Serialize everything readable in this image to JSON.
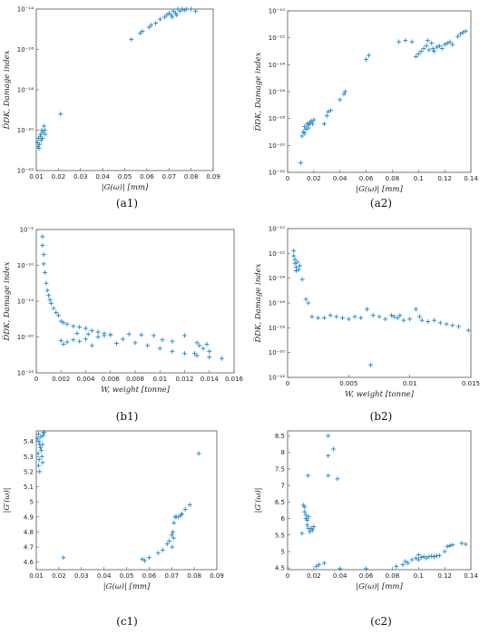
{
  "marker_color": "#1f86c8",
  "chart_data": [
    {
      "id": "a1",
      "type": "scatter",
      "yscale": "log",
      "caption": "(a1)",
      "xlabel": "|G(ω)|  [mm]",
      "ylabel": "D̅DK, Damage index",
      "xlim": [
        0.01,
        0.09
      ],
      "ylim_exp": [
        -22,
        -14
      ],
      "xticks": [
        "0.01",
        "0.02",
        "0.03",
        "0.04",
        "0.05",
        "0.06",
        "0.07",
        "0.08",
        "0.09"
      ],
      "yticks": [
        "10⁻²²",
        "10⁻²⁰",
        "10⁻¹⁸",
        "10⁻¹⁶",
        "10⁻¹⁴"
      ],
      "points": [
        [
          0.0105,
          -20.6
        ],
        [
          0.011,
          -20.4
        ],
        [
          0.0112,
          -20.9
        ],
        [
          0.0118,
          -20.3
        ],
        [
          0.0115,
          -20.7
        ],
        [
          0.012,
          -20.2
        ],
        [
          0.0125,
          -20.0
        ],
        [
          0.0128,
          -20.4
        ],
        [
          0.013,
          -20.1
        ],
        [
          0.0135,
          -19.8
        ],
        [
          0.0138,
          -20.0
        ],
        [
          0.014,
          -20.2
        ],
        [
          0.0108,
          -20.8
        ],
        [
          0.0122,
          -20.5
        ],
        [
          0.021,
          -19.2
        ],
        [
          0.053,
          -15.5
        ],
        [
          0.057,
          -15.2
        ],
        [
          0.058,
          -15.1
        ],
        [
          0.061,
          -14.9
        ],
        [
          0.062,
          -14.8
        ],
        [
          0.064,
          -14.7
        ],
        [
          0.066,
          -14.5
        ],
        [
          0.068,
          -14.4
        ],
        [
          0.069,
          -14.3
        ],
        [
          0.07,
          -14.2
        ],
        [
          0.071,
          -14.3
        ],
        [
          0.072,
          -14.1
        ],
        [
          0.073,
          -14.2
        ],
        [
          0.074,
          -14.0
        ],
        [
          0.075,
          -14.1
        ],
        [
          0.076,
          -14.0
        ],
        [
          0.077,
          -14.05
        ],
        [
          0.078,
          -14.0
        ],
        [
          0.079,
          -13.95
        ],
        [
          0.08,
          -14.0
        ],
        [
          0.082,
          -14.1
        ],
        [
          0.0715,
          -14.4
        ],
        [
          0.0735,
          -14.3
        ]
      ]
    },
    {
      "id": "a2",
      "type": "scatter",
      "yscale": "log",
      "caption": "(a2)",
      "xlabel": "|G(ω)|  [mm]",
      "ylabel": "D̅DK, Damage index",
      "xlim": [
        0,
        0.14
      ],
      "ylim_exp": [
        -22,
        -10
      ],
      "xticks": [
        "0",
        "0.02",
        "0.04",
        "0.06",
        "0.08",
        "0.1",
        "0.12",
        "0.14"
      ],
      "yticks": [
        "10⁻²²",
        "10⁻²⁰",
        "10⁻¹⁸",
        "10⁻¹⁶",
        "10⁻¹⁴",
        "10⁻¹²",
        "10⁻¹⁰"
      ],
      "points": [
        [
          0.01,
          -21.3
        ],
        [
          0.011,
          -19.3
        ],
        [
          0.012,
          -19.0
        ],
        [
          0.013,
          -18.6
        ],
        [
          0.014,
          -18.8
        ],
        [
          0.015,
          -18.4
        ],
        [
          0.016,
          -18.5
        ],
        [
          0.017,
          -18.3
        ],
        [
          0.018,
          -18.2
        ],
        [
          0.019,
          -18.4
        ],
        [
          0.02,
          -18.1
        ],
        [
          0.013,
          -19.1
        ],
        [
          0.016,
          -18.7
        ],
        [
          0.028,
          -18.4
        ],
        [
          0.03,
          -17.8
        ],
        [
          0.031,
          -17.5
        ],
        [
          0.033,
          -17.4
        ],
        [
          0.04,
          -16.6
        ],
        [
          0.043,
          -16.2
        ],
        [
          0.044,
          -16.0
        ],
        [
          0.06,
          -13.6
        ],
        [
          0.062,
          -13.3
        ],
        [
          0.085,
          -12.3
        ],
        [
          0.09,
          -12.2
        ],
        [
          0.095,
          -12.3
        ],
        [
          0.098,
          -13.4
        ],
        [
          0.1,
          -13.2
        ],
        [
          0.102,
          -13.0
        ],
        [
          0.104,
          -12.8
        ],
        [
          0.106,
          -12.6
        ],
        [
          0.108,
          -12.9
        ],
        [
          0.11,
          -12.4
        ],
        [
          0.112,
          -13.0
        ],
        [
          0.114,
          -12.7
        ],
        [
          0.116,
          -12.6
        ],
        [
          0.118,
          -12.8
        ],
        [
          0.12,
          -12.5
        ],
        [
          0.122,
          -12.4
        ],
        [
          0.124,
          -12.3
        ],
        [
          0.126,
          -12.5
        ],
        [
          0.13,
          -11.9
        ],
        [
          0.132,
          -11.7
        ],
        [
          0.134,
          -11.6
        ],
        [
          0.136,
          -11.5
        ],
        [
          0.111,
          -12.8
        ],
        [
          0.107,
          -12.2
        ]
      ]
    },
    {
      "id": "b1",
      "type": "scatter",
      "yscale": "log",
      "caption": "(b1)",
      "xlabel": "W, weight [tonne]",
      "ylabel": "D̅DK, Damage index",
      "xlim": [
        0,
        0.016
      ],
      "ylim_exp": [
        -25,
        -5
      ],
      "xticks": [
        "0",
        "0.002",
        "0.004",
        "0.006",
        "0.008",
        "0.01",
        "0.012",
        "0.014",
        "0.016"
      ],
      "yticks": [
        "10⁻²⁵",
        "10⁻²⁰",
        "10⁻¹⁵",
        "10⁻¹⁰",
        "10⁻⁵"
      ],
      "points": [
        [
          0.0005,
          -6.0
        ],
        [
          0.0005,
          -7.2
        ],
        [
          0.0006,
          -8.5
        ],
        [
          0.0006,
          -9.8
        ],
        [
          0.0007,
          -11.0
        ],
        [
          0.0008,
          -12.5
        ],
        [
          0.0009,
          -13.5
        ],
        [
          0.001,
          -14.2
        ],
        [
          0.0011,
          -14.8
        ],
        [
          0.0012,
          -15.3
        ],
        [
          0.0014,
          -16.0
        ],
        [
          0.0016,
          -16.6
        ],
        [
          0.0018,
          -17.0
        ],
        [
          0.002,
          -17.8
        ],
        [
          0.0022,
          -18.0
        ],
        [
          0.0025,
          -18.2
        ],
        [
          0.003,
          -18.5
        ],
        [
          0.0035,
          -18.6
        ],
        [
          0.004,
          -18.8
        ],
        [
          0.0045,
          -19.1
        ],
        [
          0.005,
          -19.3
        ],
        [
          0.0055,
          -19.5
        ],
        [
          0.006,
          -19.7
        ],
        [
          0.007,
          -20.3
        ],
        [
          0.008,
          -20.8
        ],
        [
          0.009,
          -21.2
        ],
        [
          0.01,
          -21.6
        ],
        [
          0.011,
          -22.0
        ],
        [
          0.012,
          -22.3
        ],
        [
          0.013,
          -22.6
        ],
        [
          0.014,
          -22.8
        ],
        [
          0.015,
          -23.0
        ],
        [
          0.002,
          -20.5
        ],
        [
          0.0022,
          -21.0
        ],
        [
          0.0025,
          -20.7
        ],
        [
          0.003,
          -20.4
        ],
        [
          0.0035,
          -20.6
        ],
        [
          0.004,
          -20.3
        ],
        [
          0.0045,
          -21.2
        ],
        [
          0.005,
          -20.0
        ],
        [
          0.0055,
          -19.8
        ],
        [
          0.006,
          -19.7
        ],
        [
          0.0065,
          -20.9
        ],
        [
          0.0075,
          -19.6
        ],
        [
          0.0085,
          -19.7
        ],
        [
          0.0095,
          -19.8
        ],
        [
          0.0102,
          -20.4
        ],
        [
          0.011,
          -20.6
        ],
        [
          0.012,
          -19.8
        ],
        [
          0.013,
          -20.8
        ],
        [
          0.0132,
          -21.2
        ],
        [
          0.0135,
          -21.6
        ],
        [
          0.014,
          -22.0
        ],
        [
          0.0138,
          -21.0
        ],
        [
          0.0128,
          -22.3
        ],
        [
          0.0033,
          -19.5
        ],
        [
          0.0042,
          -19.6
        ]
      ]
    },
    {
      "id": "b2",
      "type": "scatter",
      "yscale": "log",
      "caption": "(b2)",
      "xlabel": "W, weight [tonne]",
      "ylabel": "D̅DK, Damage index",
      "xlim": [
        0,
        0.015
      ],
      "ylim_exp": [
        -22,
        -10
      ],
      "xticks": [
        "0",
        "0.005",
        "0.01",
        "0.015"
      ],
      "yticks": [
        "10⁻²²",
        "10⁻²⁰",
        "10⁻¹⁸",
        "10⁻¹⁶",
        "10⁻¹⁴",
        "10⁻¹²",
        "10⁻¹⁰"
      ],
      "points": [
        [
          0.0005,
          -11.8
        ],
        [
          0.0005,
          -12.2
        ],
        [
          0.0006,
          -12.5
        ],
        [
          0.0006,
          -12.8
        ],
        [
          0.0007,
          -13.1
        ],
        [
          0.0007,
          -13.4
        ],
        [
          0.0008,
          -12.7
        ],
        [
          0.0009,
          -13.3
        ],
        [
          0.001,
          -13.0
        ],
        [
          0.0012,
          -14.1
        ],
        [
          0.0015,
          -15.7
        ],
        [
          0.0017,
          -16.0
        ],
        [
          0.002,
          -17.1
        ],
        [
          0.0025,
          -17.2
        ],
        [
          0.003,
          -17.2
        ],
        [
          0.0035,
          -17.0
        ],
        [
          0.004,
          -17.1
        ],
        [
          0.0045,
          -17.2
        ],
        [
          0.005,
          -17.3
        ],
        [
          0.0055,
          -17.1
        ],
        [
          0.006,
          -17.2
        ],
        [
          0.0065,
          -16.5
        ],
        [
          0.0068,
          -21.0
        ],
        [
          0.007,
          -17.0
        ],
        [
          0.0075,
          -17.1
        ],
        [
          0.008,
          -17.3
        ],
        [
          0.0085,
          -17.0
        ],
        [
          0.009,
          -17.2
        ],
        [
          0.0095,
          -17.4
        ],
        [
          0.01,
          -17.3
        ],
        [
          0.0105,
          -16.5
        ],
        [
          0.011,
          -17.4
        ],
        [
          0.0115,
          -17.5
        ],
        [
          0.012,
          -17.4
        ],
        [
          0.0125,
          -17.6
        ],
        [
          0.013,
          -17.7
        ],
        [
          0.0135,
          -17.8
        ],
        [
          0.014,
          -17.9
        ],
        [
          0.0148,
          -18.2
        ],
        [
          0.0087,
          -17.1
        ],
        [
          0.0092,
          -17.0
        ],
        [
          0.0108,
          -17.1
        ]
      ]
    },
    {
      "id": "c1",
      "type": "scatter",
      "yscale": "linear",
      "caption": "(c1)",
      "xlabel": "|G(ω)|  [mm]",
      "ylabel": "|G′(ω)|",
      "xlim": [
        0.01,
        0.09
      ],
      "ylim": [
        4.55,
        5.47
      ],
      "xticks": [
        "0.01",
        "0.02",
        "0.03",
        "0.04",
        "0.05",
        "0.06",
        "0.07",
        "0.08",
        "0.09"
      ],
      "yticks": [
        "4.6",
        "4.7",
        "4.8",
        "4.9",
        "5",
        "5.1",
        "5.2",
        "5.3",
        "5.4"
      ],
      "ytick_values": [
        4.6,
        4.7,
        4.8,
        4.9,
        5,
        5.1,
        5.2,
        5.3,
        5.4
      ],
      "points": [
        [
          0.0105,
          5.42
        ],
        [
          0.011,
          5.45
        ],
        [
          0.0112,
          5.4
        ],
        [
          0.0115,
          5.38
        ],
        [
          0.0118,
          5.36
        ],
        [
          0.012,
          5.43
        ],
        [
          0.0122,
          5.34
        ],
        [
          0.0125,
          5.3
        ],
        [
          0.0128,
          5.26
        ],
        [
          0.013,
          5.44
        ],
        [
          0.0132,
          5.46
        ],
        [
          0.0135,
          5.46
        ],
        [
          0.0115,
          5.2
        ],
        [
          0.011,
          5.24
        ],
        [
          0.0108,
          5.32
        ],
        [
          0.0113,
          5.28
        ],
        [
          0.0127,
          5.38
        ],
        [
          0.022,
          4.63
        ],
        [
          0.057,
          4.62
        ],
        [
          0.058,
          4.61
        ],
        [
          0.06,
          4.63
        ],
        [
          0.064,
          4.66
        ],
        [
          0.066,
          4.68
        ],
        [
          0.068,
          4.72
        ],
        [
          0.069,
          4.74
        ],
        [
          0.07,
          4.78
        ],
        [
          0.0705,
          4.8
        ],
        [
          0.071,
          4.86
        ],
        [
          0.0715,
          4.9
        ],
        [
          0.072,
          4.9
        ],
        [
          0.073,
          4.9
        ],
        [
          0.074,
          4.91
        ],
        [
          0.0745,
          4.92
        ],
        [
          0.076,
          4.95
        ],
        [
          0.078,
          4.98
        ],
        [
          0.082,
          5.32
        ],
        [
          0.0708,
          4.76
        ],
        [
          0.0702,
          4.7
        ]
      ]
    },
    {
      "id": "c2",
      "type": "scatter",
      "yscale": "linear",
      "caption": "(c2)",
      "xlabel": "|G(ω)|  [mm]",
      "ylabel": "|G′(ω)|",
      "xlim": [
        0,
        0.14
      ],
      "ylim": [
        4.45,
        8.65
      ],
      "xticks": [
        "0",
        "0.02",
        "0.04",
        "0.06",
        "0.08",
        "0.1",
        "0.12",
        "0.14"
      ],
      "yticks": [
        "4.5",
        "5",
        "5.5",
        "6",
        "6.5",
        "7",
        "7.5",
        "8",
        "8.5"
      ],
      "ytick_values": [
        4.5,
        5,
        5.5,
        6,
        6.5,
        7,
        7.5,
        8,
        8.5
      ],
      "points": [
        [
          0.011,
          5.55
        ],
        [
          0.012,
          6.4
        ],
        [
          0.013,
          6.2
        ],
        [
          0.014,
          6.0
        ],
        [
          0.015,
          5.8
        ],
        [
          0.016,
          5.7
        ],
        [
          0.017,
          5.6
        ],
        [
          0.018,
          5.7
        ],
        [
          0.013,
          6.35
        ],
        [
          0.014,
          6.1
        ],
        [
          0.015,
          5.95
        ],
        [
          0.016,
          6.05
        ],
        [
          0.0155,
          7.3
        ],
        [
          0.019,
          5.65
        ],
        [
          0.02,
          5.75
        ],
        [
          0.022,
          4.55
        ],
        [
          0.024,
          4.6
        ],
        [
          0.028,
          4.65
        ],
        [
          0.031,
          8.5
        ],
        [
          0.031,
          7.9
        ],
        [
          0.031,
          7.3
        ],
        [
          0.035,
          8.1
        ],
        [
          0.038,
          7.2
        ],
        [
          0.04,
          4.48
        ],
        [
          0.06,
          4.48
        ],
        [
          0.083,
          4.55
        ],
        [
          0.088,
          4.6
        ],
        [
          0.09,
          4.7
        ],
        [
          0.092,
          4.65
        ],
        [
          0.095,
          4.75
        ],
        [
          0.098,
          4.8
        ],
        [
          0.1,
          4.75
        ],
        [
          0.102,
          4.82
        ],
        [
          0.104,
          4.85
        ],
        [
          0.106,
          4.8
        ],
        [
          0.108,
          4.85
        ],
        [
          0.11,
          4.86
        ],
        [
          0.112,
          4.84
        ],
        [
          0.114,
          4.87
        ],
        [
          0.116,
          4.88
        ],
        [
          0.12,
          5.0
        ],
        [
          0.122,
          5.15
        ],
        [
          0.124,
          5.18
        ],
        [
          0.126,
          5.2
        ],
        [
          0.133,
          5.25
        ],
        [
          0.136,
          5.22
        ],
        [
          0.1,
          4.9
        ]
      ]
    }
  ]
}
